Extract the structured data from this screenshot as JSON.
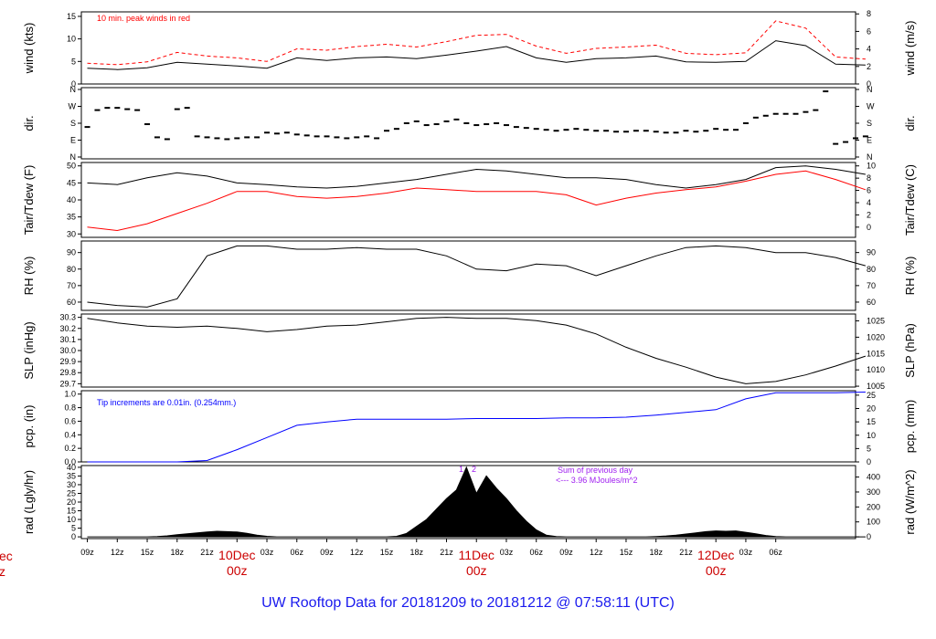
{
  "footer": {
    "title": "UW Rooftop Data for 20181209  to  20181212 @ 07:58:11  (UTC)"
  },
  "colors": {
    "primary": "#000000",
    "peak": "#ff0000",
    "precip": "#0000ff",
    "note": "#a020f0",
    "day_label": "#cc0000",
    "footer": "#1a1aee"
  },
  "chart_data": [
    {
      "id": "wind",
      "type": "line",
      "ylabel": "wind (kts)",
      "ylabel_right": "wind (m/s)",
      "ylim": [
        0,
        16
      ],
      "yticks": [
        0,
        5,
        10,
        15
      ],
      "yticks_right": [
        0,
        2,
        4,
        6,
        8
      ],
      "annotations": [
        "10 min. peak winds in red"
      ],
      "series": [
        {
          "name": "",
          "style": "line",
          "color": "#000000",
          "x": [
            0,
            3,
            6,
            9,
            12,
            15,
            18,
            21,
            24,
            27,
            30,
            33,
            36,
            39,
            42,
            45,
            48,
            51,
            54,
            57,
            60,
            63,
            66,
            69,
            72,
            75,
            78
          ],
          "y": [
            3.5,
            3.2,
            3.6,
            4.8,
            4.4,
            4.0,
            3.5,
            5.8,
            5.2,
            5.8,
            6.0,
            5.6,
            6.4,
            7.3,
            8.3,
            5.8,
            4.8,
            5.6,
            5.8,
            6.2,
            4.9,
            4.8,
            5.0,
            9.6,
            8.5,
            4.4,
            4.2
          ]
        },
        {
          "name": "",
          "style": "dash",
          "color": "#ff0000",
          "x": [
            0,
            3,
            6,
            9,
            12,
            15,
            18,
            21,
            24,
            27,
            30,
            33,
            36,
            39,
            42,
            45,
            48,
            51,
            54,
            57,
            60,
            63,
            66,
            69,
            72,
            75,
            78
          ],
          "y": [
            4.6,
            4.3,
            4.9,
            7.0,
            6.2,
            5.8,
            5.0,
            7.8,
            7.5,
            8.3,
            8.8,
            8.2,
            9.4,
            10.8,
            11.0,
            8.4,
            6.8,
            7.9,
            8.2,
            8.6,
            6.8,
            6.5,
            6.9,
            14.0,
            12.4,
            6.0,
            5.5
          ]
        }
      ]
    },
    {
      "id": "dir",
      "type": "scatter",
      "ylabel": "dir.",
      "ylabel_right": "dir.",
      "yticks": [
        "N",
        "E",
        "S",
        "W",
        "N"
      ],
      "series": [
        {
          "name": "",
          "x": [
            0,
            1,
            2,
            3,
            4,
            5,
            6,
            7,
            8,
            9,
            10,
            11,
            12,
            13,
            14,
            15,
            16,
            17,
            18,
            19,
            20,
            21,
            22,
            23,
            24,
            25,
            26,
            27,
            28,
            29,
            30,
            31,
            32,
            33,
            34,
            35,
            36,
            37,
            38,
            39,
            40,
            41,
            42,
            43,
            44,
            45,
            46,
            47,
            48,
            49,
            50,
            51,
            52,
            53,
            54,
            55,
            56,
            57,
            58,
            59,
            60,
            61,
            62,
            63,
            64,
            65,
            66,
            67,
            68,
            69,
            70,
            71,
            72,
            73,
            74,
            75,
            76,
            77,
            78
          ],
          "y": [
            160,
            250,
            262,
            262,
            255,
            250,
            175,
            105,
            95,
            255,
            262,
            110,
            105,
            100,
            95,
            100,
            105,
            105,
            130,
            125,
            130,
            120,
            115,
            110,
            110,
            105,
            100,
            105,
            110,
            100,
            140,
            150,
            180,
            190,
            170,
            175,
            190,
            200,
            180,
            170,
            175,
            180,
            170,
            160,
            155,
            150,
            145,
            140,
            145,
            150,
            145,
            140,
            140,
            135,
            135,
            140,
            140,
            135,
            130,
            130,
            140,
            135,
            140,
            150,
            145,
            145,
            180,
            210,
            220,
            230,
            230,
            230,
            240,
            250,
            350,
            70,
            80,
            100,
            110
          ]
        }
      ]
    },
    {
      "id": "temp",
      "type": "line",
      "ylabel": "Tair/Tdew (F)",
      "ylabel_right": "Tair/Tdew (C)",
      "ylim": [
        29,
        51
      ],
      "yticks": [
        30,
        35,
        40,
        45,
        50
      ],
      "yticks_right": [
        0,
        2,
        4,
        6,
        8,
        10
      ],
      "series": [
        {
          "name": "",
          "color": "#000000",
          "x": [
            0,
            3,
            6,
            9,
            12,
            15,
            18,
            21,
            24,
            27,
            30,
            33,
            36,
            39,
            42,
            45,
            48,
            51,
            54,
            57,
            60,
            63,
            66,
            69,
            72,
            75,
            78
          ],
          "y": [
            45,
            44.5,
            46.5,
            48,
            47,
            45,
            44.5,
            43.8,
            43.5,
            44,
            45,
            46,
            47.5,
            49,
            48.5,
            47.5,
            46.5,
            46.5,
            46,
            44.5,
            43.5,
            44.5,
            46,
            49.5,
            50,
            49,
            47.5
          ]
        },
        {
          "name": "",
          "color": "#ff0000",
          "x": [
            0,
            3,
            6,
            9,
            12,
            15,
            18,
            21,
            24,
            27,
            30,
            33,
            36,
            39,
            42,
            45,
            48,
            51,
            54,
            57,
            60,
            63,
            66,
            69,
            72,
            75,
            78
          ],
          "y": [
            32,
            31,
            33,
            36,
            39,
            42.5,
            42.5,
            41,
            40.5,
            41,
            42,
            43.5,
            43,
            42.5,
            42.5,
            42.5,
            41.5,
            38.5,
            40.5,
            42,
            43,
            43.8,
            45.5,
            47.5,
            48.5,
            46,
            43
          ]
        }
      ]
    },
    {
      "id": "rh",
      "type": "line",
      "ylabel": "RH (%)",
      "ylabel_right": "RH (%)",
      "ylim": [
        55,
        97
      ],
      "yticks": [
        60,
        70,
        80,
        90
      ],
      "yticks_right": [
        60,
        70,
        80,
        90
      ],
      "series": [
        {
          "name": "",
          "color": "#000000",
          "x": [
            0,
            3,
            6,
            9,
            12,
            15,
            18,
            21,
            24,
            27,
            30,
            33,
            36,
            39,
            42,
            45,
            48,
            51,
            54,
            57,
            60,
            63,
            66,
            69,
            72,
            75,
            78
          ],
          "y": [
            60,
            58,
            57,
            62,
            88,
            94,
            94,
            92,
            92,
            93,
            92,
            92,
            88,
            80,
            79,
            83,
            82,
            76,
            82,
            88,
            93,
            94,
            93,
            90,
            90,
            87,
            82
          ]
        }
      ]
    },
    {
      "id": "slp",
      "type": "line",
      "ylabel": "SLP (inHg)",
      "ylabel_right": "SLP (hPa)",
      "ylim": [
        29.67,
        30.33
      ],
      "yticks": [
        29.7,
        29.8,
        29.9,
        30.0,
        30.1,
        30.2,
        30.3
      ],
      "yticks_right": [
        1005,
        1010,
        1015,
        1020,
        1025
      ],
      "series": [
        {
          "name": "",
          "color": "#000000",
          "x": [
            0,
            3,
            6,
            9,
            12,
            15,
            18,
            21,
            24,
            27,
            30,
            33,
            36,
            39,
            42,
            45,
            48,
            51,
            54,
            57,
            60,
            63,
            66,
            69,
            72,
            75,
            78
          ],
          "y": [
            30.29,
            30.25,
            30.22,
            30.21,
            30.22,
            30.2,
            30.17,
            30.19,
            30.22,
            30.23,
            30.26,
            30.29,
            30.3,
            30.29,
            30.29,
            30.27,
            30.23,
            30.15,
            30.03,
            29.93,
            29.85,
            29.76,
            29.7,
            29.72,
            29.78,
            29.86,
            29.95
          ]
        }
      ]
    },
    {
      "id": "pcp",
      "type": "line",
      "ylabel": "pcp. (in)",
      "ylabel_right": "pcp. (mm)",
      "ylim": [
        0,
        1.05
      ],
      "yticks": [
        0.0,
        0.2,
        0.4,
        0.6,
        0.8,
        1.0
      ],
      "yticks_right": [
        0,
        5,
        10,
        15,
        20,
        25
      ],
      "annotations": [
        "Tip increments are 0.01in. (0.254mm.)"
      ],
      "series": [
        {
          "name": "",
          "color": "#0000ff",
          "x": [
            0,
            3,
            6,
            9,
            12,
            15,
            18,
            21,
            24,
            27,
            30,
            33,
            36,
            39,
            42,
            45,
            48,
            51,
            54,
            57,
            60,
            63,
            66,
            69,
            72,
            75,
            78
          ],
          "y": [
            0,
            0,
            0,
            0,
            0.02,
            0.18,
            0.36,
            0.54,
            0.59,
            0.63,
            0.63,
            0.63,
            0.63,
            0.64,
            0.64,
            0.64,
            0.65,
            0.65,
            0.66,
            0.69,
            0.73,
            0.77,
            0.93,
            1.02,
            1.02,
            1.02,
            1.03
          ]
        }
      ]
    },
    {
      "id": "rad",
      "type": "area",
      "ylabel": "rad (Lgly/hr)",
      "ylabel_right": "rad (W/m^2)",
      "ylim": [
        -1,
        41
      ],
      "yticks": [
        0,
        5,
        10,
        15,
        20,
        25,
        30,
        35,
        40
      ],
      "yticks_right": [
        0,
        100,
        200,
        300,
        400
      ],
      "annotations": [
        "1",
        "2",
        "Sum of previous day",
        "<--- 3.96 MJoules/m^2"
      ],
      "series": [
        {
          "name": "",
          "color": "#000000",
          "x": [
            0,
            3,
            6,
            7,
            8,
            9,
            10,
            11,
            12,
            13,
            14,
            15,
            16,
            17,
            18,
            19,
            30,
            31,
            32,
            33,
            34,
            35,
            36,
            37,
            38,
            39,
            40,
            41,
            42,
            43,
            44,
            45,
            46,
            47,
            48,
            49,
            56,
            57,
            58,
            59,
            60,
            61,
            62,
            63,
            64,
            65,
            66,
            67,
            68,
            69,
            70,
            78
          ],
          "y": [
            0,
            0,
            0,
            0.2,
            0.6,
            1.2,
            1.8,
            2.3,
            2.8,
            3.2,
            3.0,
            2.8,
            2.0,
            1.0,
            0.3,
            0,
            0,
            0.3,
            2.0,
            6.0,
            10.0,
            16.0,
            22.0,
            27.0,
            40.0,
            25.0,
            35.0,
            28.0,
            22.0,
            15.0,
            9.0,
            4.0,
            1.0,
            0.2,
            0,
            0,
            0,
            0.2,
            0.5,
            1.0,
            1.6,
            2.3,
            3.0,
            3.4,
            3.2,
            3.4,
            2.6,
            1.8,
            0.8,
            0.2,
            0,
            0
          ]
        }
      ]
    },
    {
      "id": "time_axis",
      "type": "axis",
      "x_units": "hours since 09z 09 Dec",
      "ticks": [
        "09z",
        "12z",
        "15z",
        "18z",
        "21z",
        "00z",
        "03z",
        "06z",
        "09z",
        "12z",
        "15z",
        "18z",
        "21z",
        "00z",
        "03z",
        "06z",
        "09z",
        "12z",
        "15z",
        "18z",
        "21z",
        "00z",
        "03z",
        "06z"
      ],
      "day_labels": [
        {
          "day": "10Dec",
          "hour": "00z"
        },
        {
          "day": "11Dec",
          "hour": "00z"
        },
        {
          "day": "12Dec",
          "hour": "00z"
        }
      ],
      "left_edge_fragment": [
        "ec",
        "z"
      ],
      "xlim": [
        -0.6,
        77.0
      ]
    }
  ]
}
